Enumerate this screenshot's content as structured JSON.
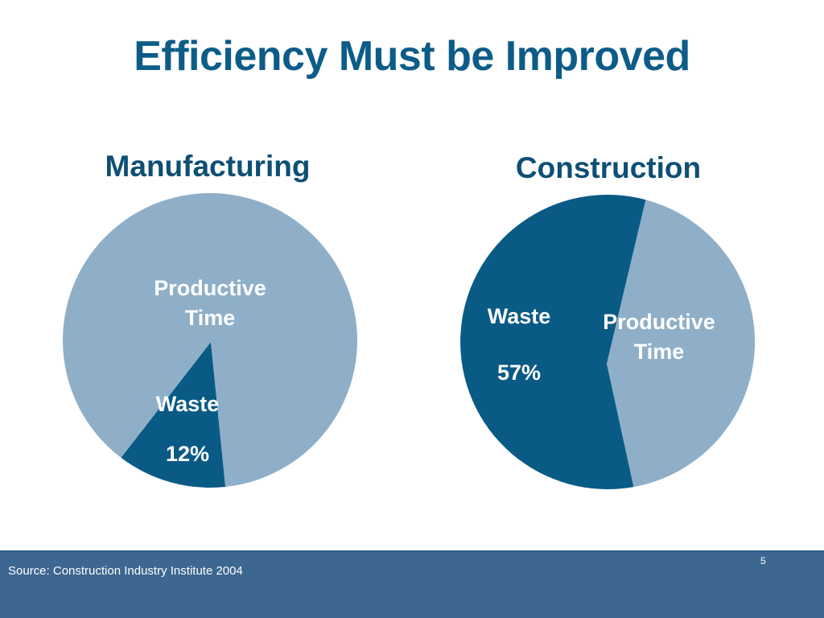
{
  "title": "Efficiency Must be Improved",
  "colors": {
    "title": "#0d5c88",
    "waste": "#0a5a86",
    "productive": "#8fafc8",
    "footer": "#3d6690",
    "label_on_light": "#ffffff"
  },
  "chart_data": [
    {
      "type": "pie",
      "title": "Manufacturing",
      "slices": [
        {
          "label": "Productive Time",
          "label_lines": [
            "Productive",
            "Time"
          ],
          "value": 88,
          "value_label": ""
        },
        {
          "label": "Waste",
          "label_lines": [
            "Waste"
          ],
          "value": 12,
          "value_label": "12%"
        }
      ]
    },
    {
      "type": "pie",
      "title": "Construction",
      "slices": [
        {
          "label": "Waste",
          "label_lines": [
            "Waste"
          ],
          "value": 57,
          "value_label": "57%"
        },
        {
          "label": "Productive Time",
          "label_lines": [
            "Productive",
            "Time"
          ],
          "value": 43,
          "value_label": ""
        }
      ]
    }
  ],
  "footer": {
    "source": "Source: Construction Industry Institute 2004",
    "page_number": "5"
  }
}
